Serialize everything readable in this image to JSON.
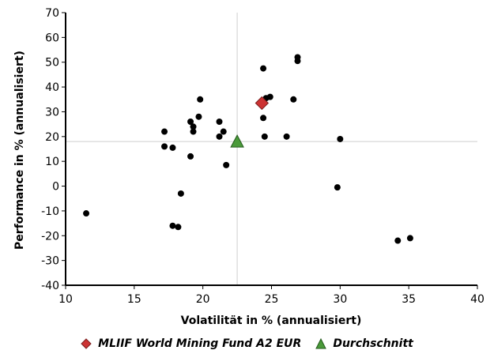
{
  "chart_data": {
    "type": "scatter",
    "xlabel": "Volatilität in % (annualisiert)",
    "ylabel": "Performance in % (annualisiert)",
    "xlim": [
      10,
      40
    ],
    "ylim": [
      -40,
      70
    ],
    "x_ticks": [
      10,
      15,
      20,
      25,
      30,
      35,
      40
    ],
    "y_ticks": [
      -40,
      -30,
      -20,
      -10,
      0,
      10,
      20,
      30,
      40,
      50,
      60,
      70
    ],
    "reference_lines": {
      "x": 22.5,
      "y": 18
    },
    "grid": false,
    "legend_position": "bottom-center",
    "series": [
      {
        "name": "",
        "marker": "circle",
        "color": "#000000",
        "points": [
          {
            "x": 11.5,
            "y": -11
          },
          {
            "x": 17.2,
            "y": 22
          },
          {
            "x": 17.2,
            "y": 16
          },
          {
            "x": 17.8,
            "y": 15.5
          },
          {
            "x": 17.8,
            "y": -16
          },
          {
            "x": 18.2,
            "y": -16.5
          },
          {
            "x": 18.4,
            "y": -3
          },
          {
            "x": 19.1,
            "y": 26
          },
          {
            "x": 19.3,
            "y": 24
          },
          {
            "x": 19.3,
            "y": 22
          },
          {
            "x": 19.1,
            "y": 12
          },
          {
            "x": 19.7,
            "y": 28
          },
          {
            "x": 19.8,
            "y": 35
          },
          {
            "x": 21.2,
            "y": 26
          },
          {
            "x": 21.2,
            "y": 20
          },
          {
            "x": 21.5,
            "y": 22
          },
          {
            "x": 21.7,
            "y": 8.5
          },
          {
            "x": 24.4,
            "y": 47.5
          },
          {
            "x": 24.4,
            "y": 27.5
          },
          {
            "x": 24.5,
            "y": 20
          },
          {
            "x": 24.6,
            "y": 35.5
          },
          {
            "x": 24.9,
            "y": 36
          },
          {
            "x": 26.1,
            "y": 20
          },
          {
            "x": 26.6,
            "y": 35
          },
          {
            "x": 26.9,
            "y": 52
          },
          {
            "x": 26.9,
            "y": 50.5
          },
          {
            "x": 29.8,
            "y": -0.5
          },
          {
            "x": 30.0,
            "y": 19
          },
          {
            "x": 34.2,
            "y": -22
          },
          {
            "x": 35.1,
            "y": -21
          }
        ]
      },
      {
        "name": "MLIIF World Mining Fund A2 EUR",
        "marker": "diamond",
        "color": "#cc3333",
        "points": [
          {
            "x": 24.3,
            "y": 33.5
          }
        ]
      },
      {
        "name": "Durchschnitt",
        "marker": "triangle",
        "color": "#4a9a3a",
        "points": [
          {
            "x": 22.5,
            "y": 18
          }
        ]
      }
    ]
  }
}
